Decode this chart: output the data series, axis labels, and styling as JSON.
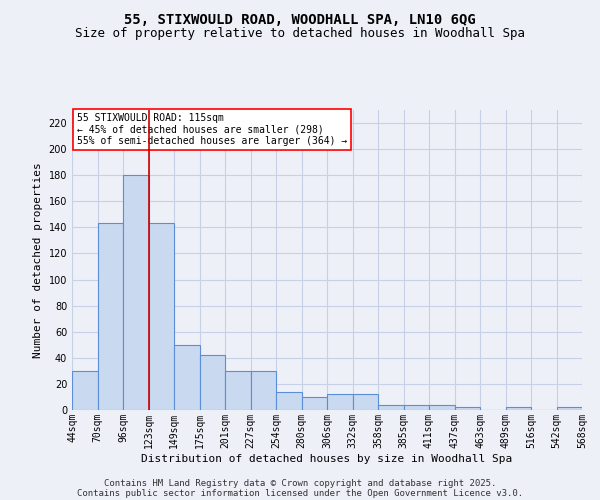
{
  "title": "55, STIXWOULD ROAD, WOODHALL SPA, LN10 6QG",
  "subtitle": "Size of property relative to detached houses in Woodhall Spa",
  "xlabel": "Distribution of detached houses by size in Woodhall Spa",
  "ylabel": "Number of detached properties",
  "bar_values": [
    30,
    143,
    180,
    143,
    50,
    42,
    30,
    30,
    14,
    10,
    12,
    12,
    4,
    4,
    4,
    2,
    0,
    2,
    0,
    2
  ],
  "bin_labels": [
    "44sqm",
    "70sqm",
    "96sqm",
    "123sqm",
    "149sqm",
    "175sqm",
    "201sqm",
    "227sqm",
    "254sqm",
    "280sqm",
    "306sqm",
    "332sqm",
    "358sqm",
    "385sqm",
    "411sqm",
    "437sqm",
    "463sqm",
    "489sqm",
    "516sqm",
    "542sqm",
    "568sqm"
  ],
  "bar_color": "#c9d9f0",
  "bar_edge_color": "#5b8ed6",
  "property_line_x": 2.5,
  "annotation_text": "55 STIXWOULD ROAD: 115sqm\n← 45% of detached houses are smaller (298)\n55% of semi-detached houses are larger (364) →",
  "annotation_box_color": "white",
  "annotation_box_edge_color": "red",
  "red_line_color": "#cc0000",
  "ylim": [
    0,
    230
  ],
  "yticks": [
    0,
    20,
    40,
    60,
    80,
    100,
    120,
    140,
    160,
    180,
    200,
    220
  ],
  "grid_color": "#c8d0e8",
  "bg_color": "#eef0f8",
  "footer_line1": "Contains HM Land Registry data © Crown copyright and database right 2025.",
  "footer_line2": "Contains public sector information licensed under the Open Government Licence v3.0.",
  "title_fontsize": 10,
  "subtitle_fontsize": 9,
  "xlabel_fontsize": 8,
  "ylabel_fontsize": 8,
  "tick_fontsize": 7,
  "footer_fontsize": 6.5,
  "annot_fontsize": 7
}
